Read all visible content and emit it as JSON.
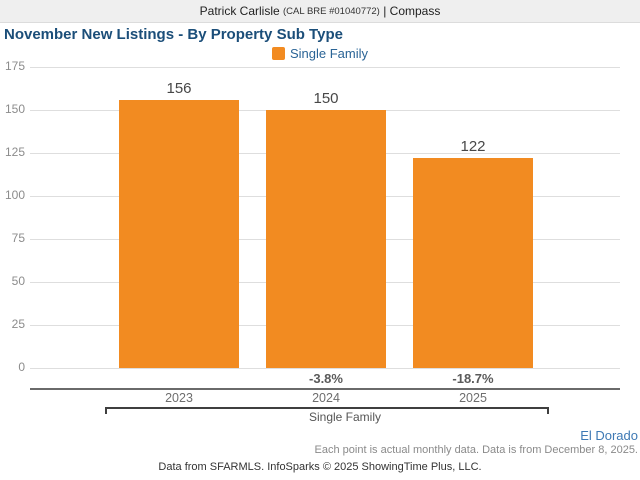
{
  "header": {
    "agent_name": "Patrick Carlisle",
    "license": "(CAL BRE #01040772)",
    "separator": "|",
    "brokerage": "Compass"
  },
  "title": "November New Listings - By Property Sub Type",
  "legend": {
    "label": "Single Family",
    "swatch_color": "#f28b21"
  },
  "chart_data": {
    "type": "bar",
    "title": "November New Listings - By Property Sub Type",
    "categories": [
      "2023",
      "2024",
      "2025"
    ],
    "values": [
      156,
      150,
      122
    ],
    "pct_change_labels": [
      "",
      "-3.8%",
      "-18.7%"
    ],
    "series_name": "Single Family",
    "group_label": "Single Family",
    "xlabel": "",
    "ylabel": "",
    "ylim": [
      0,
      175
    ],
    "yticks": [
      0,
      25,
      50,
      75,
      100,
      125,
      150,
      175
    ],
    "grid": true,
    "bar_color": "#f28b21",
    "legend_position": "top-center"
  },
  "footer": {
    "region_label": "El Dorado",
    "data_note": "Each point is actual monthly data. Data is from December 8, 2025.",
    "attribution": "Data from SFARMLS. InfoSparks © 2025 ShowingTime Plus, LLC."
  },
  "colors": {
    "bar_orange": "#f28b21",
    "title_navy": "#1b4e79",
    "legend_blue": "#2a6496",
    "region_blue": "#3e79b4",
    "gridline_gray": "#dedede",
    "axis_text_gray": "#8c8c8c",
    "header_bg": "#efefef"
  }
}
